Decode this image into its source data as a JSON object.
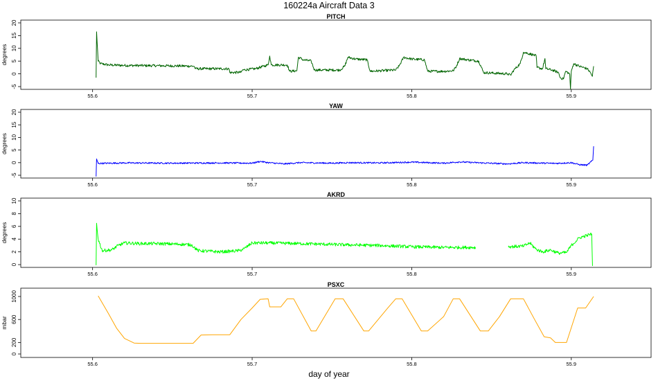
{
  "title": "160224a   Aircraft Data 3",
  "xlabel": "day of year",
  "colors": {
    "pitch": "#006400",
    "yaw": "#0000ff",
    "akrd": "#00ff00",
    "psxc": "#ffa500",
    "axis": "#000000"
  },
  "chart_data": [
    {
      "type": "line",
      "title": "PITCH",
      "ylabel": "degrees",
      "xlim": [
        55.555,
        55.95
      ],
      "ylim": [
        -5,
        20
      ],
      "xticks": [
        "55.6",
        "55.7",
        "55.8",
        "55.9"
      ],
      "yticks": [
        "-5",
        "0",
        "5",
        "10",
        "15",
        "20"
      ],
      "series": [
        {
          "color": "#006400",
          "noise": 0.5,
          "points": [
            [
              55.6022,
              -1.5
            ],
            [
              55.6025,
              16.5
            ],
            [
              55.6035,
              5
            ],
            [
              55.605,
              4
            ],
            [
              55.61,
              3.5
            ],
            [
              55.62,
              3.3
            ],
            [
              55.64,
              3.2
            ],
            [
              55.655,
              3.1
            ],
            [
              55.6635,
              3.0
            ],
            [
              55.6645,
              2.0
            ],
            [
              55.68,
              2.0
            ],
            [
              55.6855,
              2.0
            ],
            [
              55.686,
              0.5
            ],
            [
              55.693,
              0.6
            ],
            [
              55.694,
              1.5
            ],
            [
              55.702,
              2.0
            ],
            [
              55.71,
              3.5
            ],
            [
              55.711,
              7.0
            ],
            [
              55.712,
              3.5
            ],
            [
              55.722,
              3.5
            ],
            [
              55.7235,
              1.0
            ],
            [
              55.728,
              1.2
            ],
            [
              55.729,
              6.5
            ],
            [
              55.732,
              5.5
            ],
            [
              55.737,
              5.0
            ],
            [
              55.739,
              1.5
            ],
            [
              55.755,
              1.5
            ],
            [
              55.758,
              3.0
            ],
            [
              55.76,
              6.5
            ],
            [
              55.765,
              5.8
            ],
            [
              55.772,
              5.5
            ],
            [
              55.774,
              1.0
            ],
            [
              55.78,
              1.2
            ],
            [
              55.79,
              1.5
            ],
            [
              55.792,
              3.0
            ],
            [
              55.795,
              6.5
            ],
            [
              55.8,
              5.8
            ],
            [
              55.808,
              5.5
            ],
            [
              55.81,
              1.0
            ],
            [
              55.82,
              1.0
            ],
            [
              55.826,
              1.2
            ],
            [
              55.828,
              3.0
            ],
            [
              55.83,
              6.0
            ],
            [
              55.835,
              5.5
            ],
            [
              55.842,
              5.0
            ],
            [
              55.845,
              0.5
            ],
            [
              55.86,
              0.0
            ],
            [
              55.862,
              -0.5
            ],
            [
              55.864,
              1.5
            ],
            [
              55.868,
              4.0
            ],
            [
              55.87,
              8.5
            ],
            [
              55.876,
              7.5
            ],
            [
              55.878,
              7.0
            ],
            [
              55.8785,
              2.5
            ],
            [
              55.882,
              2.0
            ],
            [
              55.8835,
              6.0
            ],
            [
              55.884,
              2.0
            ],
            [
              55.888,
              1.5
            ],
            [
              55.892,
              0.5
            ],
            [
              55.893,
              -1.5
            ],
            [
              55.895,
              -2.0
            ],
            [
              55.8965,
              1.0
            ],
            [
              55.899,
              0.0
            ],
            [
              55.8995,
              -6.0
            ],
            [
              55.9,
              1.0
            ],
            [
              55.9015,
              4.0
            ],
            [
              55.905,
              3.0
            ],
            [
              55.91,
              2.0
            ],
            [
              55.912,
              0.5
            ],
            [
              55.9132,
              -1.0
            ],
            [
              55.914,
              3.0
            ]
          ]
        }
      ]
    },
    {
      "type": "line",
      "title": "YAW",
      "ylabel": "degrees",
      "xlim": [
        55.555,
        55.95
      ],
      "ylim": [
        -5,
        20
      ],
      "xticks": [
        "55.6",
        "55.7",
        "55.8",
        "55.9"
      ],
      "yticks": [
        "-5",
        "0",
        "5",
        "10",
        "15",
        "20"
      ],
      "series": [
        {
          "color": "#0000ff",
          "noise": 0.3,
          "points": [
            [
              55.6022,
              -5.5
            ],
            [
              55.6025,
              1.5
            ],
            [
              55.6035,
              -0.3
            ],
            [
              55.62,
              -0.1
            ],
            [
              55.65,
              -0.2
            ],
            [
              55.68,
              -0.1
            ],
            [
              55.7,
              -0.2
            ],
            [
              55.705,
              0.5
            ],
            [
              55.71,
              0.0
            ],
            [
              55.72,
              -0.5
            ],
            [
              55.73,
              0.0
            ],
            [
              55.75,
              -0.2
            ],
            [
              55.76,
              0.0
            ],
            [
              55.78,
              -0.1
            ],
            [
              55.8,
              0.2
            ],
            [
              55.82,
              -0.2
            ],
            [
              55.83,
              0.3
            ],
            [
              55.84,
              0.0
            ],
            [
              55.86,
              -0.5
            ],
            [
              55.87,
              0.0
            ],
            [
              55.89,
              -0.3
            ],
            [
              55.9,
              0.0
            ],
            [
              55.905,
              -0.8
            ],
            [
              55.91,
              -1.0
            ],
            [
              55.9135,
              1.0
            ],
            [
              55.914,
              6.5
            ]
          ]
        }
      ]
    },
    {
      "type": "line",
      "title": "AKRD",
      "ylabel": "degrees",
      "xlim": [
        55.555,
        55.95
      ],
      "ylim": [
        0,
        10
      ],
      "xticks": [
        "55.6",
        "55.7",
        "55.8",
        "55.9"
      ],
      "yticks": [
        "0",
        "2",
        "4",
        "6",
        "8",
        "10"
      ],
      "series": [
        {
          "color": "#00ff00",
          "noise": 0.25,
          "points": [
            [
              55.6022,
              -0.1
            ],
            [
              55.6025,
              6.5
            ],
            [
              55.6035,
              4.0
            ],
            [
              55.606,
              2.2
            ],
            [
              55.612,
              2.3
            ],
            [
              55.616,
              3.0
            ],
            [
              55.62,
              3.4
            ],
            [
              55.63,
              3.3
            ],
            [
              55.64,
              3.3
            ],
            [
              55.655,
              3.2
            ],
            [
              55.662,
              3.1
            ],
            [
              55.666,
              2.2
            ],
            [
              55.68,
              2.0
            ],
            [
              55.687,
              2.1
            ],
            [
              55.692,
              2.2
            ],
            [
              55.695,
              2.5
            ],
            [
              55.7,
              3.4
            ],
            [
              55.71,
              3.4
            ],
            [
              55.73,
              3.3
            ],
            [
              55.76,
              3.1
            ],
            [
              55.78,
              3.0
            ],
            [
              55.8,
              2.8
            ],
            [
              55.82,
              2.7
            ],
            [
              55.84,
              2.7
            ],
            [
              null,
              null
            ],
            [
              55.8605,
              2.8
            ],
            [
              55.87,
              2.9
            ],
            [
              55.874,
              3.4
            ],
            [
              55.878,
              2.4
            ],
            [
              55.882,
              2.0
            ],
            [
              55.887,
              2.3
            ],
            [
              55.892,
              1.8
            ],
            [
              55.897,
              1.9
            ],
            [
              55.9,
              3.0
            ],
            [
              55.905,
              4.2
            ],
            [
              55.91,
              4.6
            ],
            [
              55.9128,
              4.8
            ],
            [
              55.9133,
              -0.2
            ]
          ]
        }
      ]
    },
    {
      "type": "line",
      "title": "PSXC",
      "ylabel": "mbar",
      "xlim": [
        55.555,
        55.95
      ],
      "ylim": [
        0,
        1000
      ],
      "xticks": [
        "55.6",
        "55.7",
        "55.8",
        "55.9"
      ],
      "yticks": [
        "0",
        "200",
        "600",
        "1000"
      ],
      "series": [
        {
          "color": "#ffa500",
          "noise": 0,
          "points": [
            [
              55.6035,
              1010
            ],
            [
              55.61,
              700
            ],
            [
              55.615,
              450
            ],
            [
              55.62,
              270
            ],
            [
              55.626,
              190
            ],
            [
              55.63,
              185
            ],
            [
              55.64,
              185
            ],
            [
              55.655,
              185
            ],
            [
              55.663,
              185
            ],
            [
              55.668,
              330
            ],
            [
              55.675,
              335
            ],
            [
              55.686,
              335
            ],
            [
              55.693,
              600
            ],
            [
              55.7,
              800
            ],
            [
              55.705,
              950
            ],
            [
              55.71,
              960
            ],
            [
              55.711,
              820
            ],
            [
              55.718,
              820
            ],
            [
              55.722,
              960
            ],
            [
              55.726,
              960
            ],
            [
              55.737,
              400
            ],
            [
              55.74,
              400
            ],
            [
              55.752,
              960
            ],
            [
              55.757,
              960
            ],
            [
              55.77,
              400
            ],
            [
              55.773,
              400
            ],
            [
              55.785,
              800
            ],
            [
              55.79,
              960
            ],
            [
              55.794,
              960
            ],
            [
              55.806,
              400
            ],
            [
              55.81,
              400
            ],
            [
              55.82,
              650
            ],
            [
              55.826,
              960
            ],
            [
              55.83,
              960
            ],
            [
              55.843,
              400
            ],
            [
              55.848,
              400
            ],
            [
              55.855,
              650
            ],
            [
              55.862,
              960
            ],
            [
              55.87,
              960
            ],
            [
              55.877,
              600
            ],
            [
              55.883,
              300
            ],
            [
              55.887,
              280
            ],
            [
              55.89,
              200
            ],
            [
              55.897,
              200
            ],
            [
              55.904,
              800
            ],
            [
              55.909,
              800
            ],
            [
              55.914,
              1000
            ]
          ]
        }
      ]
    }
  ]
}
